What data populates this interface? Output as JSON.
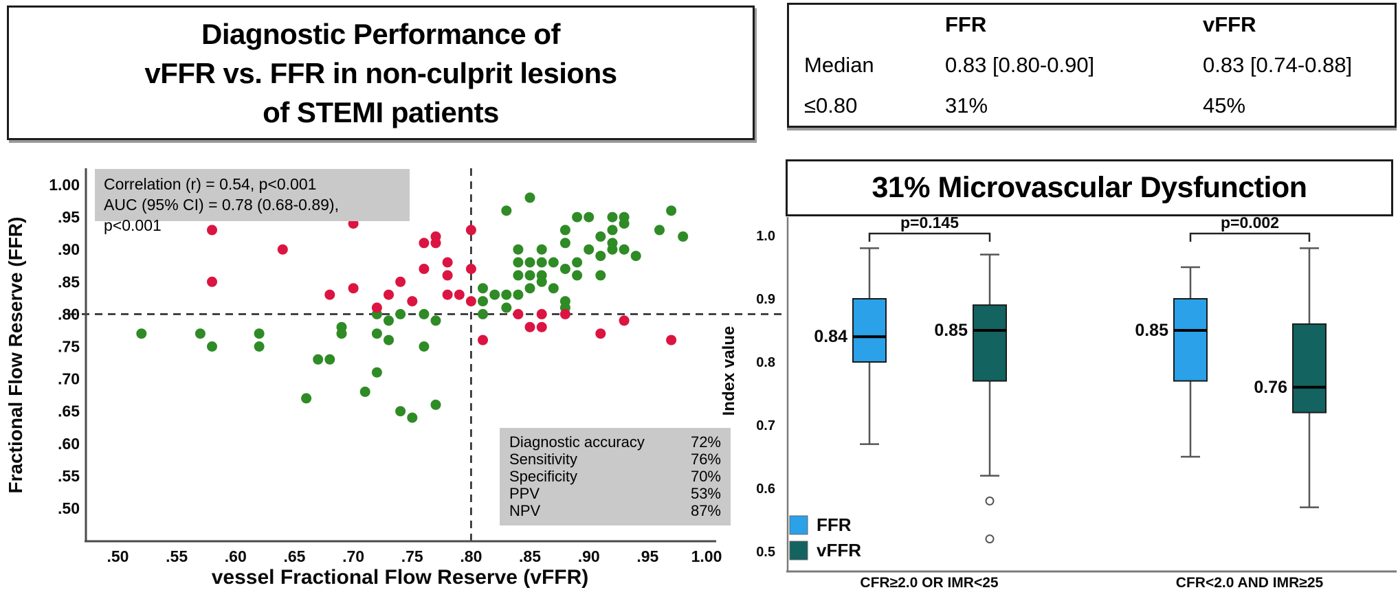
{
  "title_box": {
    "lines": [
      "Diagnostic Performance of",
      "vFFR vs. FFR in non-culprit lesions",
      "of STEMI patients"
    ]
  },
  "summary_table": {
    "col_headers": [
      "",
      "FFR",
      "vFFR"
    ],
    "rows": [
      {
        "label": "Median",
        "ffr": "0.83 [0.80-0.90]",
        "vffr": "0.83 [0.74-0.88]"
      },
      {
        "label": "≤0.80",
        "ffr": "31%",
        "vffr": "45%"
      }
    ]
  },
  "colors": {
    "concordant_green": "#2f8b25",
    "discordant_red": "#dc1441",
    "ffr_blue": "#2aa1e8",
    "vffr_teal": "#136360",
    "stat_box_gray": "#c9c9c9"
  },
  "chart_data": [
    {
      "type": "scatter",
      "xlabel": "vessel Fractional Flow Reserve (vFFR)",
      "ylabel": "Fractional Flow Reserve (FFR)",
      "x_ticks": [
        ".50",
        ".55",
        ".60",
        ".65",
        ".70",
        ".75",
        ".80",
        ".85",
        ".90",
        ".95",
        "1.00"
      ],
      "x_tick_values": [
        0.5,
        0.55,
        0.6,
        0.65,
        0.7,
        0.75,
        0.8,
        0.85,
        0.9,
        0.95,
        1.0
      ],
      "y_ticks": [
        "1.00",
        ".95",
        ".90",
        ".85",
        ".80",
        ".75",
        ".70",
        ".65",
        ".60",
        ".55",
        ".50"
      ],
      "y_tick_values": [
        1.0,
        0.95,
        0.9,
        0.85,
        0.8,
        0.75,
        0.7,
        0.65,
        0.6,
        0.55,
        0.5
      ],
      "xlim": [
        0.47,
        1.01
      ],
      "ylim": [
        0.45,
        1.02
      ],
      "threshold_x": 0.8,
      "threshold_y": 0.8,
      "grid": false,
      "annotations": {
        "correlation": "Correlation (r) = 0.54, p<0.001",
        "auc": "AUC (95% CI) = 0.78 (0.68-0.89), p<0.001"
      },
      "metrics": [
        {
          "label": "Diagnostic accuracy",
          "value": "72%"
        },
        {
          "label": "Sensitivity",
          "value": "76%"
        },
        {
          "label": "Specificity",
          "value": "70%"
        },
        {
          "label": "PPV",
          "value": "53%"
        },
        {
          "label": "NPV",
          "value": "87%"
        }
      ],
      "series": [
        {
          "name": "concordant",
          "color": "#2f8b25",
          "points": [
            [
              0.52,
              0.77
            ],
            [
              0.57,
              0.77
            ],
            [
              0.58,
              0.75
            ],
            [
              0.62,
              0.77
            ],
            [
              0.62,
              0.75
            ],
            [
              0.66,
              0.67
            ],
            [
              0.67,
              0.73
            ],
            [
              0.68,
              0.73
            ],
            [
              0.69,
              0.78
            ],
            [
              0.69,
              0.77
            ],
            [
              0.71,
              0.68
            ],
            [
              0.72,
              0.71
            ],
            [
              0.72,
              0.8
            ],
            [
              0.72,
              0.77
            ],
            [
              0.73,
              0.79
            ],
            [
              0.73,
              0.76
            ],
            [
              0.74,
              0.8
            ],
            [
              0.74,
              0.65
            ],
            [
              0.75,
              0.64
            ],
            [
              0.76,
              0.8
            ],
            [
              0.76,
              0.75
            ],
            [
              0.77,
              0.79
            ],
            [
              0.77,
              0.66
            ],
            [
              0.81,
              0.84
            ],
            [
              0.81,
              0.82
            ],
            [
              0.81,
              0.8
            ],
            [
              0.82,
              0.83
            ],
            [
              0.83,
              0.96
            ],
            [
              0.83,
              0.83
            ],
            [
              0.83,
              0.81
            ],
            [
              0.84,
              0.9
            ],
            [
              0.84,
              0.88
            ],
            [
              0.84,
              0.86
            ],
            [
              0.84,
              0.83
            ],
            [
              0.85,
              0.98
            ],
            [
              0.85,
              0.88
            ],
            [
              0.85,
              0.86
            ],
            [
              0.85,
              0.84
            ],
            [
              0.86,
              0.9
            ],
            [
              0.86,
              0.88
            ],
            [
              0.86,
              0.86
            ],
            [
              0.86,
              0.85
            ],
            [
              0.87,
              0.88
            ],
            [
              0.87,
              0.84
            ],
            [
              0.88,
              0.93
            ],
            [
              0.88,
              0.91
            ],
            [
              0.88,
              0.87
            ],
            [
              0.88,
              0.82
            ],
            [
              0.88,
              0.81
            ],
            [
              0.89,
              0.95
            ],
            [
              0.89,
              0.88
            ],
            [
              0.89,
              0.86
            ],
            [
              0.9,
              0.95
            ],
            [
              0.9,
              0.9
            ],
            [
              0.91,
              0.92
            ],
            [
              0.91,
              0.89
            ],
            [
              0.91,
              0.86
            ],
            [
              0.92,
              0.95
            ],
            [
              0.92,
              0.93
            ],
            [
              0.92,
              0.91
            ],
            [
              0.92,
              0.9
            ],
            [
              0.93,
              0.95
            ],
            [
              0.93,
              0.94
            ],
            [
              0.93,
              0.9
            ],
            [
              0.94,
              0.89
            ],
            [
              0.96,
              0.93
            ],
            [
              0.97,
              0.96
            ],
            [
              0.98,
              0.92
            ]
          ]
        },
        {
          "name": "discordant",
          "color": "#dc1441",
          "points": [
            [
              0.58,
              0.93
            ],
            [
              0.58,
              0.85
            ],
            [
              0.64,
              0.9
            ],
            [
              0.68,
              0.83
            ],
            [
              0.7,
              0.94
            ],
            [
              0.7,
              0.84
            ],
            [
              0.72,
              0.81
            ],
            [
              0.73,
              0.83
            ],
            [
              0.74,
              0.85
            ],
            [
              0.75,
              0.82
            ],
            [
              0.76,
              0.91
            ],
            [
              0.76,
              0.87
            ],
            [
              0.77,
              0.92
            ],
            [
              0.77,
              0.91
            ],
            [
              0.78,
              0.88
            ],
            [
              0.78,
              0.86
            ],
            [
              0.78,
              0.83
            ],
            [
              0.79,
              0.83
            ],
            [
              0.8,
              0.93
            ],
            [
              0.8,
              0.87
            ],
            [
              0.8,
              0.82
            ],
            [
              0.81,
              0.76
            ],
            [
              0.84,
              0.8
            ],
            [
              0.85,
              0.78
            ],
            [
              0.86,
              0.8
            ],
            [
              0.86,
              0.78
            ],
            [
              0.88,
              0.8
            ],
            [
              0.91,
              0.77
            ],
            [
              0.93,
              0.79
            ],
            [
              0.97,
              0.76
            ]
          ]
        }
      ]
    },
    {
      "type": "boxplot",
      "title": "31% Microvascular Dysfunction",
      "ylabel": "Index value",
      "y_ticks": [
        "1.0",
        "0.9",
        "0.8",
        "0.7",
        "0.6",
        "0.5"
      ],
      "y_tick_values": [
        1.0,
        0.9,
        0.8,
        0.7,
        0.6,
        0.5
      ],
      "legend": [
        {
          "label": "FFR",
          "color": "#2aa1e8"
        },
        {
          "label": "vFFR",
          "color": "#136360"
        }
      ],
      "groups": [
        {
          "label": "CFR≥2.0 OR IMR<25",
          "p_value": "p=0.145",
          "boxes": [
            {
              "name": "FFR",
              "color": "#2aa1e8",
              "low": 0.67,
              "q1": 0.8,
              "median": 0.84,
              "q3": 0.9,
              "high": 0.98,
              "median_label": "0.84",
              "outliers": []
            },
            {
              "name": "vFFR",
              "color": "#136360",
              "low": 0.62,
              "q1": 0.77,
              "median": 0.85,
              "q3": 0.89,
              "high": 0.97,
              "median_label": "0.85",
              "outliers": [
                0.58,
                0.52
              ]
            }
          ]
        },
        {
          "label": "CFR<2.0 AND IMR≥25",
          "p_value": "p=0.002",
          "boxes": [
            {
              "name": "FFR",
              "color": "#2aa1e8",
              "low": 0.65,
              "q1": 0.77,
              "median": 0.85,
              "q3": 0.9,
              "high": 0.95,
              "median_label": "0.85",
              "outliers": []
            },
            {
              "name": "vFFR",
              "color": "#136360",
              "low": 0.57,
              "q1": 0.72,
              "median": 0.76,
              "q3": 0.86,
              "high": 0.98,
              "median_label": "0.76",
              "outliers": []
            }
          ]
        }
      ]
    }
  ]
}
